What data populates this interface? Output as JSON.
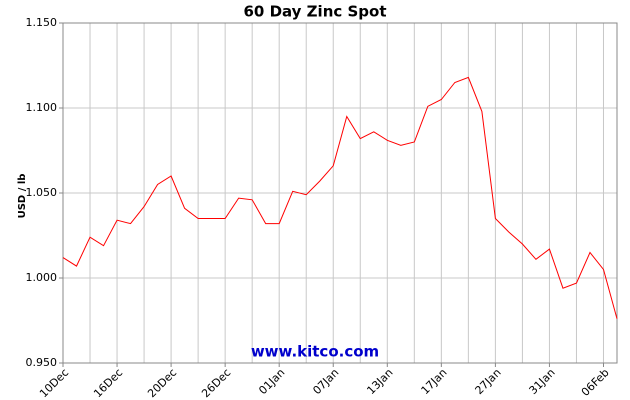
{
  "chart_data": {
    "type": "line",
    "title": "60 Day Zinc Spot",
    "y_label": "USD / lb",
    "watermark": "www.kitco.com",
    "categories": [
      "10Dec",
      null,
      null,
      null,
      "16Dec",
      null,
      null,
      null,
      "20Dec",
      null,
      null,
      null,
      "26Dec",
      null,
      null,
      null,
      "01Jan",
      null,
      null,
      null,
      "07Jan",
      null,
      null,
      null,
      "13Jan",
      null,
      null,
      null,
      "17Jan",
      null,
      null,
      null,
      "27Jan",
      null,
      null,
      null,
      "31Jan",
      null,
      null,
      null,
      "06Feb",
      null
    ],
    "values": [
      1.012,
      1.007,
      1.024,
      1.019,
      1.034,
      1.032,
      1.042,
      1.055,
      1.06,
      1.041,
      1.035,
      1.035,
      1.035,
      1.047,
      1.046,
      1.032,
      1.032,
      1.051,
      1.049,
      1.057,
      1.066,
      1.095,
      1.082,
      1.086,
      1.081,
      1.078,
      1.08,
      1.101,
      1.105,
      1.115,
      1.118,
      1.098,
      1.035,
      1.027,
      1.02,
      1.011,
      1.017,
      0.994,
      0.997,
      1.015,
      1.005,
      0.976
    ],
    "color": "#ff0000",
    "ylim": [
      0.95,
      1.15
    ],
    "yticks": [
      {
        "value": 0.95,
        "label": "0.950"
      },
      {
        "value": 1.0,
        "label": "1.000"
      },
      {
        "value": 1.05,
        "label": "1.050"
      },
      {
        "value": 1.1,
        "label": "1.100"
      },
      {
        "value": 1.15,
        "label": "1.150"
      }
    ],
    "grid": true
  }
}
